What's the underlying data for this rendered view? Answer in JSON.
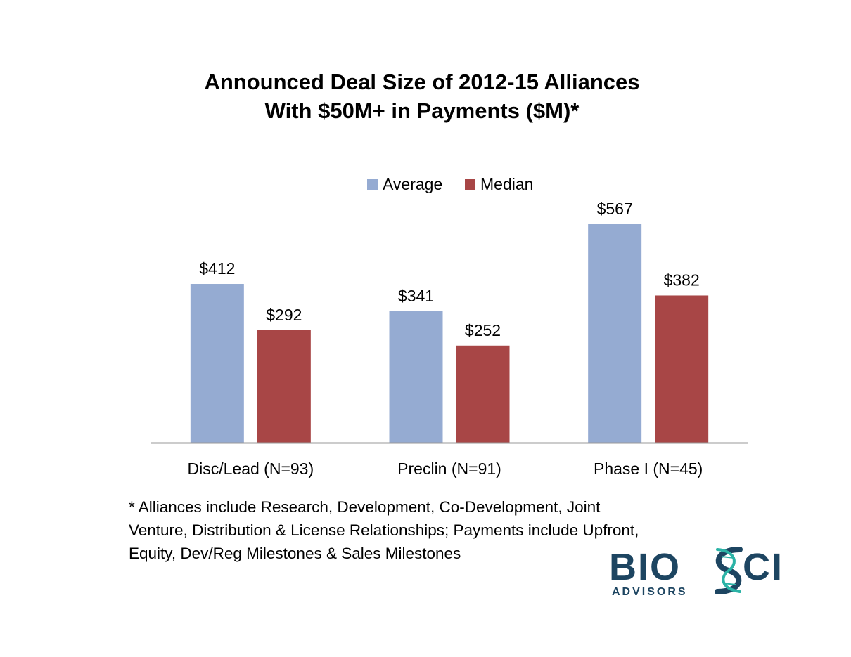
{
  "chart_data": {
    "type": "bar",
    "title": [
      "Announced Deal Size of 2012-15 Alliances",
      "With $50M+ in Payments ($M)*"
    ],
    "categories": [
      "Disc/Lead (N=93)",
      "Preclin (N=91)",
      "Phase I (N=45)"
    ],
    "series": [
      {
        "name": "Average",
        "values": [
          412,
          341,
          567
        ],
        "labels": [
          "$412",
          "$341",
          "$567"
        ],
        "color": "#95abd2"
      },
      {
        "name": "Median",
        "values": [
          292,
          252,
          382
        ],
        "labels": [
          "$292",
          "$252",
          "$382"
        ],
        "color": "#a84646"
      }
    ],
    "ylim": [
      0,
      567
    ],
    "grid": false,
    "legend": "top-center",
    "xlabel": "",
    "ylabel": ""
  },
  "footnote": [
    "* Alliances include Research, Development, Co-Development, Joint",
    "Venture, Distribution & License Relationships; Payments include Upfront,",
    "Equity, Dev/Reg Milestones & Sales Milestones"
  ],
  "logo": {
    "part1": "BIO",
    "part2": "CI",
    "subtitle": "ADVISORS",
    "color_dark": "#1d4561",
    "color_accent": "#2bb3a6"
  }
}
